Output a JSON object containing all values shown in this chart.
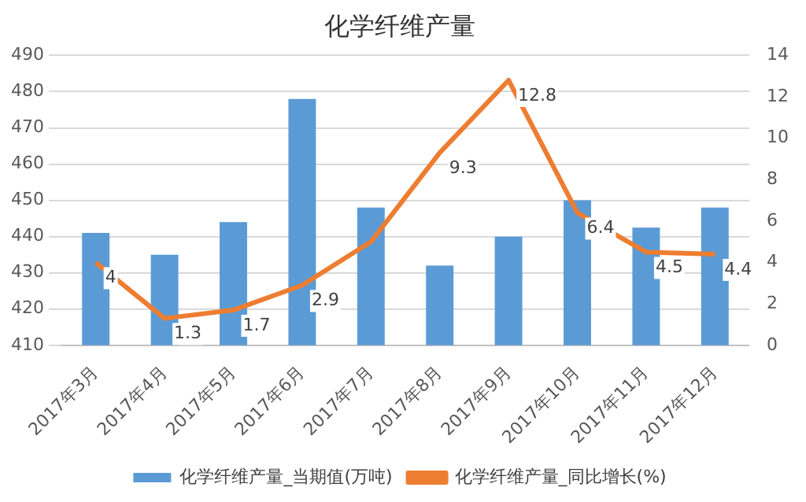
{
  "chart_data": {
    "type": "bar",
    "title": "化学纤维产量",
    "categories": [
      "2017年3月",
      "2017年4月",
      "2017年5月",
      "2017年6月",
      "2017年7月",
      "2017年8月",
      "2017年9月",
      "2017年10月",
      "2017年11月",
      "2017年12月"
    ],
    "series": [
      {
        "name": "化学纤维产量_当期值(万吨)",
        "color": "#5b9bd5",
        "values": [
          441,
          435,
          444,
          478,
          448,
          432,
          440,
          450,
          442.5,
          448
        ]
      },
      {
        "name": "化学纤维产量_同比增长(%)",
        "color": "#ed7d31",
        "type": "line",
        "axis": "y2",
        "values": [
          4,
          1.3,
          1.7,
          2.9,
          5,
          9.3,
          12.8,
          6.4,
          4.5,
          4.4
        ],
        "value_labels": [
          "4",
          "1.3",
          "1.7",
          "2.9",
          null,
          "9.3",
          "12.8",
          "6.4",
          "4.5",
          "4.4"
        ]
      }
    ],
    "ylim": [
      410,
      490
    ],
    "yticks": [
      410,
      420,
      430,
      440,
      450,
      460,
      470,
      480,
      490
    ],
    "y2lim": [
      0,
      14
    ],
    "y2ticks": [
      0,
      2,
      4,
      6,
      8,
      10,
      12,
      14
    ],
    "grid": "y",
    "legend": "bottom",
    "marker": "none"
  }
}
